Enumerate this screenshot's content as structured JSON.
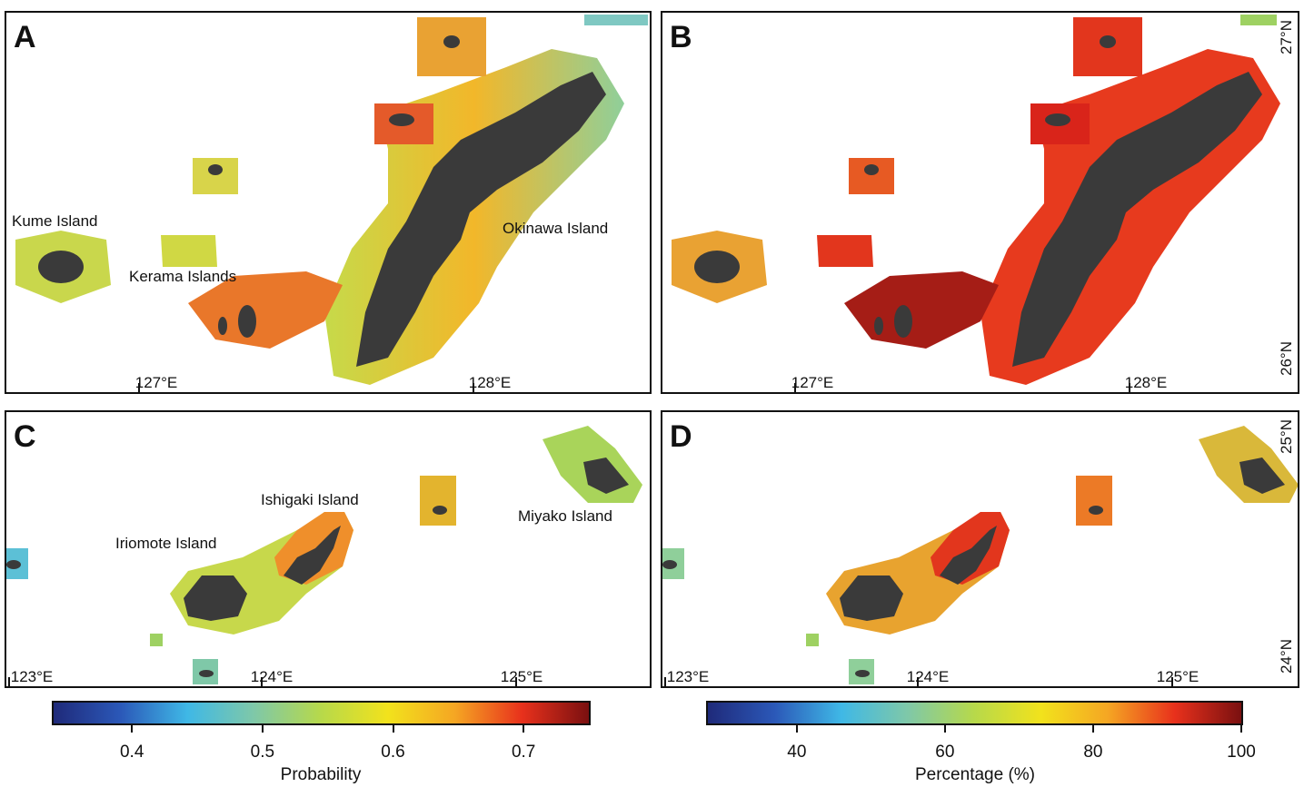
{
  "colors": {
    "land": "#3a3a3a",
    "ramp": [
      "#1f2a7a",
      "#2b58b8",
      "#3fb8e6",
      "#7fc8a8",
      "#b7d94a",
      "#f2e21c",
      "#f5a623",
      "#e8311c",
      "#7a1010"
    ]
  },
  "panels": {
    "a": {
      "label": "A",
      "lon_ticks": [
        "127°E",
        "128°E"
      ],
      "places": [
        "Kume Island",
        "Kerama Islands",
        "Okinawa Island"
      ]
    },
    "b": {
      "label": "B",
      "lon_ticks": [
        "127°E",
        "128°E"
      ],
      "lat_ticks": [
        "27°N",
        "26°N"
      ]
    },
    "c": {
      "label": "C",
      "lon_ticks": [
        "123°E",
        "124°E",
        "125°E"
      ],
      "places": [
        "Ishigaki Island",
        "Iriomote Island",
        "Miyako Island"
      ]
    },
    "d": {
      "label": "D",
      "lon_ticks": [
        "123°E",
        "124°E",
        "125°E"
      ],
      "lat_ticks": [
        "25°N",
        "24°N"
      ]
    }
  },
  "colorbars": {
    "left": {
      "title": "Probability",
      "min": 0.34,
      "max": 0.75,
      "ticks": [
        "0.4",
        "0.5",
        "0.6",
        "0.7"
      ],
      "tick_values": [
        0.4,
        0.5,
        0.6,
        0.7
      ]
    },
    "right": {
      "title": "Percentage (%)",
      "min": 28,
      "max": 100,
      "ticks": [
        "40",
        "60",
        "80",
        "100"
      ],
      "tick_values": [
        40,
        60,
        80,
        100
      ]
    }
  }
}
